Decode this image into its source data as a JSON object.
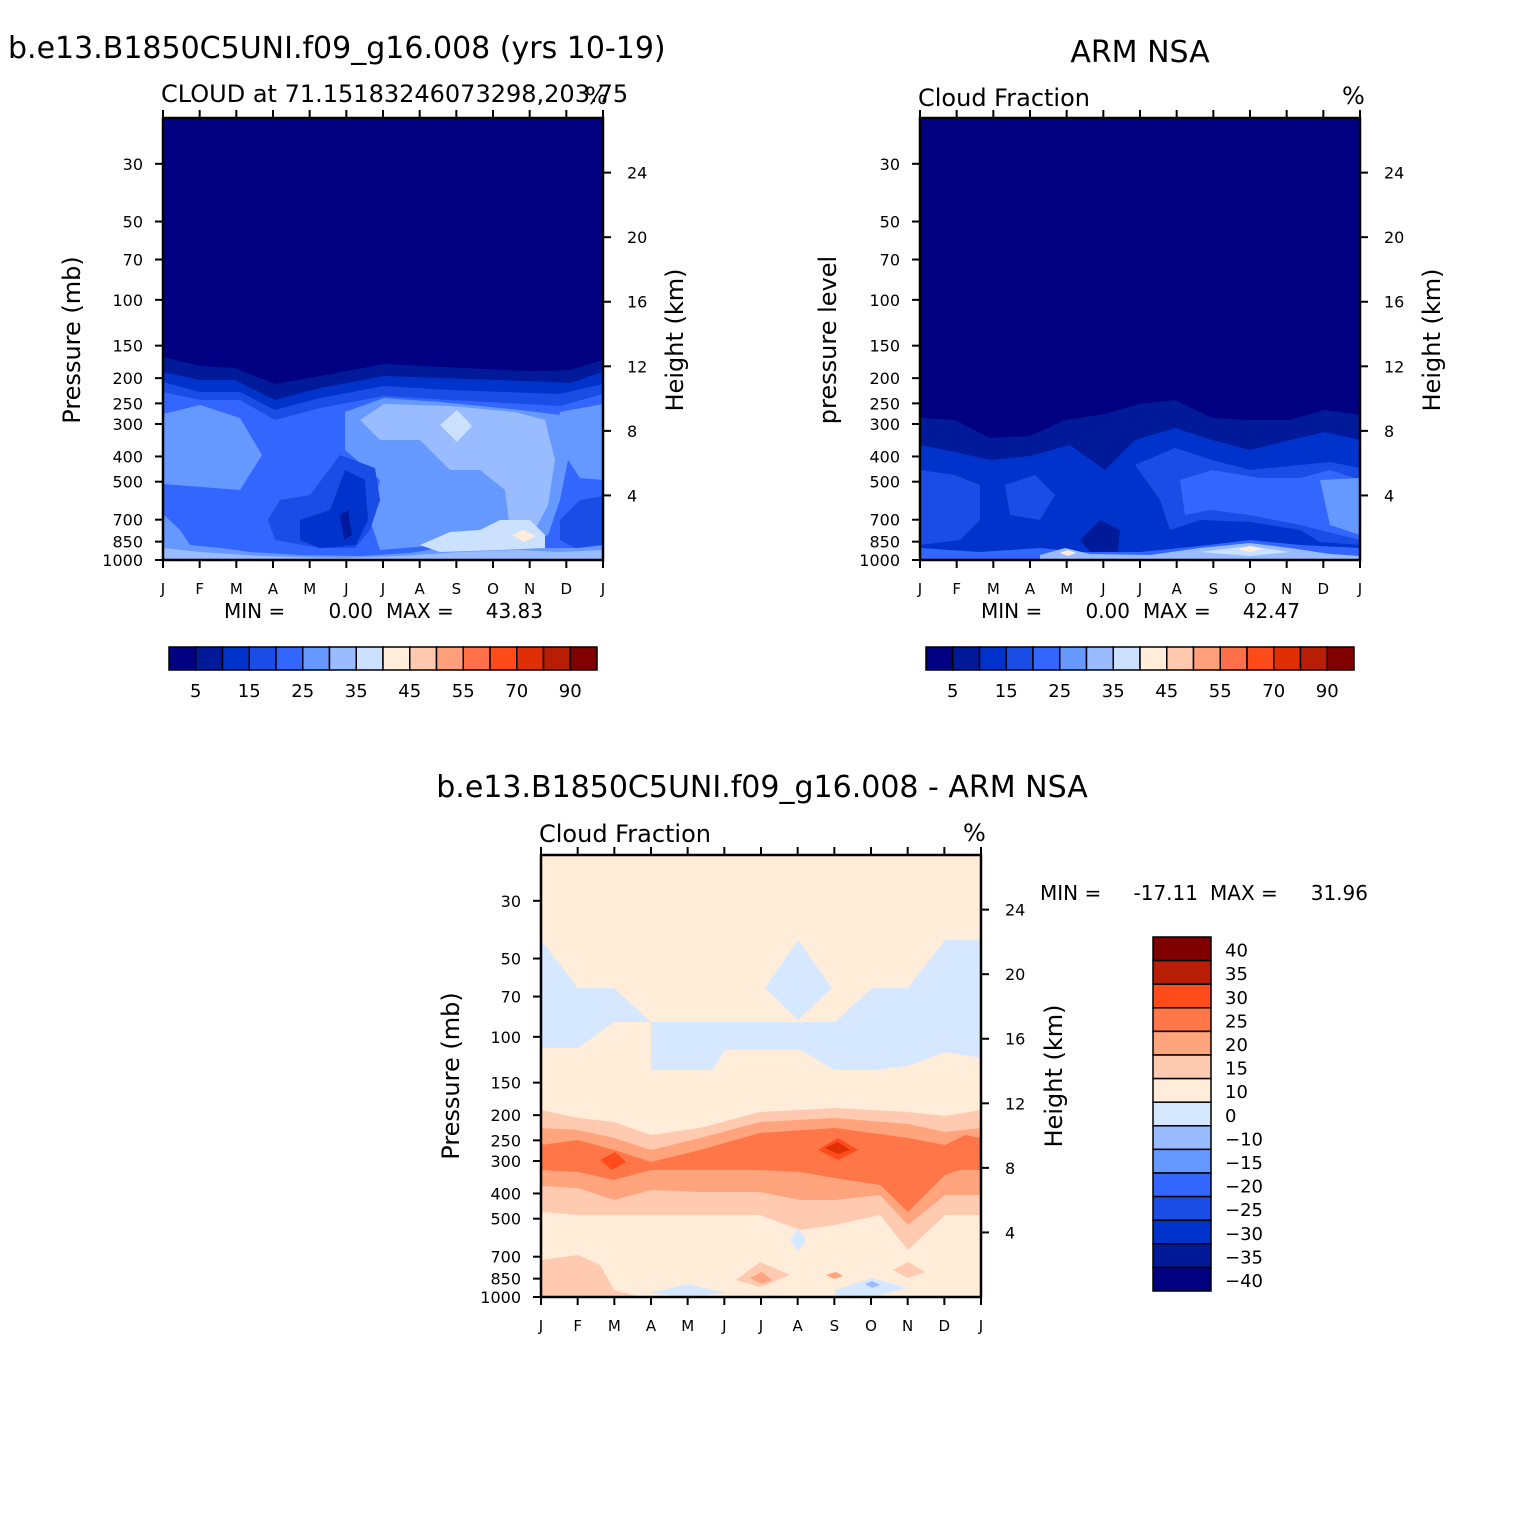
{
  "colors": {
    "cloud_scale": [
      "#000080",
      "#001a99",
      "#0033cc",
      "#1a4ce6",
      "#3366ff",
      "#6699ff",
      "#99bbff",
      "#cce0ff",
      "#ffecd9",
      "#ffc9b0",
      "#ffa07a",
      "#ff7048",
      "#ff4c1a",
      "#e02e05",
      "#b81e05",
      "#800000"
    ],
    "diff_scale": [
      "#000080",
      "#001a99",
      "#0033cc",
      "#1a4ce6",
      "#3366ff",
      "#6699ff",
      "#99bbff",
      "#d6e8ff",
      "#ffecd9",
      "#ffcab0",
      "#ffa47c",
      "#ff7648",
      "#ff4c1a",
      "#b81e05",
      "#800000"
    ]
  },
  "chart_data": [
    {
      "type": "heatmap",
      "title": "b.e13.B1850C5UNI.f09_g16.008 (yrs 10-19)",
      "subtitle_left": "CLOUD at 71.15183246073298,203.75",
      "subtitle_right": "%",
      "ylabel": "Pressure (mb)",
      "ylabel_right": "Height (km)",
      "x": [
        "J",
        "F",
        "M",
        "A",
        "M",
        "J",
        "J",
        "A",
        "S",
        "O",
        "N",
        "D",
        "J"
      ],
      "y_ticks": [
        30,
        50,
        70,
        100,
        150,
        200,
        250,
        300,
        400,
        500,
        700,
        850,
        1000
      ],
      "y_right_ticks": [
        24,
        20,
        16,
        12,
        8,
        4
      ],
      "ylim": [
        1000,
        20
      ],
      "stats": {
        "min_label": "MIN =",
        "min": "0.00",
        "max_label": "MAX =",
        "max": "43.83"
      },
      "colorbar": {
        "labels": [
          "5",
          "15",
          "25",
          "35",
          "45",
          "55",
          "70",
          "90"
        ],
        "levels": [
          5,
          10,
          15,
          20,
          25,
          30,
          35,
          40,
          45,
          50,
          55,
          60,
          70,
          80,
          90
        ]
      },
      "values_by_month": [
        {
          "month": "J",
          "profile": [
            [
              30,
              0
            ],
            [
              150,
              0
            ],
            [
              200,
              4
            ],
            [
              250,
              12
            ],
            [
              300,
              22
            ],
            [
              400,
              30
            ],
            [
              500,
              28
            ],
            [
              700,
              22
            ],
            [
              850,
              16
            ],
            [
              1000,
              20
            ]
          ]
        },
        {
          "month": "M",
          "profile": [
            [
              30,
              0
            ],
            [
              150,
              0
            ],
            [
              200,
              3
            ],
            [
              250,
              10
            ],
            [
              300,
              22
            ],
            [
              400,
              31
            ],
            [
              500,
              27
            ],
            [
              700,
              20
            ],
            [
              850,
              15
            ],
            [
              1000,
              22
            ]
          ]
        },
        {
          "month": "J",
          "profile": [
            [
              30,
              0
            ],
            [
              150,
              0
            ],
            [
              200,
              4
            ],
            [
              250,
              14
            ],
            [
              300,
              28
            ],
            [
              400,
              24
            ],
            [
              500,
              14
            ],
            [
              700,
              6
            ],
            [
              850,
              12
            ],
            [
              1000,
              22
            ]
          ]
        },
        {
          "month": "S",
          "profile": [
            [
              30,
              0
            ],
            [
              150,
              0
            ],
            [
              200,
              4
            ],
            [
              250,
              16
            ],
            [
              300,
              38
            ],
            [
              400,
              36
            ],
            [
              500,
              30
            ],
            [
              700,
              28
            ],
            [
              850,
              34
            ],
            [
              1000,
              30
            ]
          ]
        },
        {
          "month": "N",
          "profile": [
            [
              30,
              0
            ],
            [
              150,
              0
            ],
            [
              200,
              3
            ],
            [
              250,
              12
            ],
            [
              300,
              30
            ],
            [
              400,
              32
            ],
            [
              500,
              34
            ],
            [
              700,
              36
            ],
            [
              850,
              43.8
            ],
            [
              1000,
              28
            ]
          ]
        }
      ]
    },
    {
      "type": "heatmap",
      "title": "ARM NSA",
      "subtitle_left": "Cloud Fraction",
      "subtitle_right": "%",
      "ylabel": "pressure level",
      "ylabel_right": "Height (km)",
      "x": [
        "J",
        "F",
        "M",
        "A",
        "M",
        "J",
        "J",
        "A",
        "S",
        "O",
        "N",
        "D",
        "J"
      ],
      "y_ticks": [
        30,
        50,
        70,
        100,
        150,
        200,
        250,
        300,
        400,
        500,
        700,
        850,
        1000
      ],
      "y_right_ticks": [
        24,
        20,
        16,
        12,
        8,
        4
      ],
      "ylim": [
        1000,
        20
      ],
      "stats": {
        "min_label": "MIN =",
        "min": "0.00",
        "max_label": "MAX =",
        "max": "42.47"
      },
      "colorbar": {
        "labels": [
          "5",
          "15",
          "25",
          "35",
          "45",
          "55",
          "70",
          "90"
        ],
        "levels": [
          5,
          10,
          15,
          20,
          25,
          30,
          35,
          40,
          45,
          50,
          55,
          60,
          70,
          80,
          90
        ]
      },
      "values_by_month": [
        {
          "month": "J",
          "profile": [
            [
              30,
              0
            ],
            [
              250,
              0
            ],
            [
              300,
              4
            ],
            [
              400,
              10
            ],
            [
              500,
              18
            ],
            [
              700,
              22
            ],
            [
              850,
              14
            ],
            [
              1000,
              18
            ]
          ]
        },
        {
          "month": "M",
          "profile": [
            [
              30,
              0
            ],
            [
              350,
              0
            ],
            [
              400,
              6
            ],
            [
              500,
              16
            ],
            [
              700,
              22
            ],
            [
              850,
              10
            ],
            [
              1000,
              14
            ]
          ]
        },
        {
          "month": "J",
          "profile": [
            [
              30,
              0
            ],
            [
              450,
              0
            ],
            [
              500,
              6
            ],
            [
              700,
              10
            ],
            [
              850,
              4
            ],
            [
              1000,
              16
            ]
          ]
        },
        {
          "month": "S",
          "profile": [
            [
              30,
              0
            ],
            [
              280,
              0
            ],
            [
              300,
              6
            ],
            [
              400,
              14
            ],
            [
              500,
              22
            ],
            [
              700,
              20
            ],
            [
              850,
              26
            ],
            [
              1000,
              34
            ]
          ]
        },
        {
          "month": "O",
          "profile": [
            [
              30,
              0
            ],
            [
              300,
              0
            ],
            [
              400,
              10
            ],
            [
              500,
              20
            ],
            [
              700,
              24
            ],
            [
              850,
              30
            ],
            [
              1000,
              42.5
            ]
          ]
        }
      ]
    },
    {
      "type": "heatmap",
      "title": "b.e13.B1850C5UNI.f09_g16.008 - ARM NSA",
      "subtitle_left": "Cloud Fraction",
      "subtitle_right": "%",
      "ylabel": "Pressure (mb)",
      "ylabel_right": "Height (km)",
      "x": [
        "J",
        "F",
        "M",
        "A",
        "M",
        "J",
        "J",
        "A",
        "S",
        "O",
        "N",
        "D",
        "J"
      ],
      "y_ticks": [
        30,
        50,
        70,
        100,
        150,
        200,
        250,
        300,
        400,
        500,
        700,
        850,
        1000
      ],
      "y_right_ticks": [
        24,
        20,
        16,
        12,
        8,
        4
      ],
      "ylim": [
        1000,
        20
      ],
      "stats": {
        "min_label": "MIN =",
        "min": "-17.11",
        "max_label": "MAX =",
        "max": "31.96"
      },
      "colorbar": {
        "labels": [
          "40",
          "35",
          "30",
          "25",
          "20",
          "15",
          "10",
          "0",
          "−10",
          "−15",
          "−20",
          "−25",
          "−30",
          "−35",
          "−40"
        ],
        "levels": [
          -40,
          -35,
          -30,
          -25,
          -20,
          -15,
          -10,
          0,
          10,
          15,
          20,
          25,
          30,
          35,
          40
        ]
      },
      "values_by_month": [
        {
          "month": "J",
          "profile": [
            [
              30,
              1
            ],
            [
              100,
              -2
            ],
            [
              200,
              2
            ],
            [
              250,
              10
            ],
            [
              300,
              18
            ],
            [
              400,
              14
            ],
            [
              500,
              8
            ],
            [
              700,
              4
            ],
            [
              850,
              2
            ],
            [
              1000,
              0
            ]
          ]
        },
        {
          "month": "M",
          "profile": [
            [
              30,
              1
            ],
            [
              100,
              1
            ],
            [
              200,
              3
            ],
            [
              250,
              14
            ],
            [
              300,
              24
            ],
            [
              400,
              18
            ],
            [
              500,
              10
            ],
            [
              700,
              6
            ],
            [
              850,
              8
            ],
            [
              1000,
              -2
            ]
          ]
        },
        {
          "month": "A",
          "profile": [
            [
              30,
              1
            ],
            [
              100,
              -3
            ],
            [
              200,
              4
            ],
            [
              250,
              16
            ],
            [
              300,
              30
            ],
            [
              400,
              20
            ],
            [
              500,
              6
            ],
            [
              700,
              1
            ],
            [
              850,
              12
            ],
            [
              1000,
              0
            ]
          ]
        },
        {
          "month": "S",
          "profile": [
            [
              30,
              1
            ],
            [
              100,
              -3
            ],
            [
              200,
              4
            ],
            [
              250,
              18
            ],
            [
              300,
              32
            ],
            [
              400,
              24
            ],
            [
              500,
              10
            ],
            [
              700,
              2
            ],
            [
              850,
              8
            ],
            [
              1000,
              -3
            ]
          ]
        },
        {
          "month": "N",
          "profile": [
            [
              30,
              1
            ],
            [
              100,
              -2
            ],
            [
              200,
              3
            ],
            [
              250,
              14
            ],
            [
              300,
              26
            ],
            [
              400,
              22
            ],
            [
              500,
              18
            ],
            [
              700,
              10
            ],
            [
              850,
              12
            ],
            [
              1000,
              0
            ]
          ]
        }
      ]
    }
  ]
}
